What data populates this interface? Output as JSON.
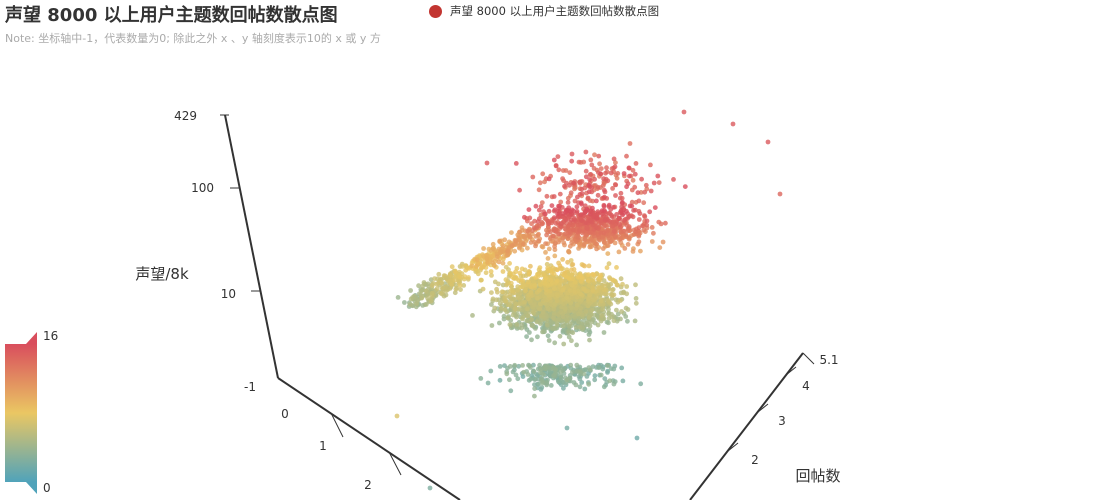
{
  "chart_data": {
    "type": "scatter",
    "title": "声望 8000 以上用户主题数回帖数散点图",
    "subtitle": "Note: 坐标轴中-1，代表数量为0; 除此之外 x 、y 轴刻度表示10的 x 或 y 方",
    "legend": {
      "name": "声望 8000 以上用户主题数回帖数散点图",
      "position": "top-center",
      "color": "#c23531"
    },
    "axes": {
      "z": {
        "name": "声望/8k",
        "ticks": [
          "429",
          "100",
          "10",
          "-1"
        ],
        "scale": "log"
      },
      "x": {
        "ticks": [
          "0",
          "1",
          "2"
        ]
      },
      "y": {
        "name": "回帖数",
        "ticks": [
          "2",
          "3",
          "4",
          "5.1"
        ]
      }
    },
    "visual_map": {
      "min": 0,
      "max": 16,
      "max_label": "16",
      "min_label": "0",
      "colors": [
        "#d94e5d",
        "#eac763",
        "#50a3ba"
      ]
    },
    "point_count_approx": 3200
  }
}
